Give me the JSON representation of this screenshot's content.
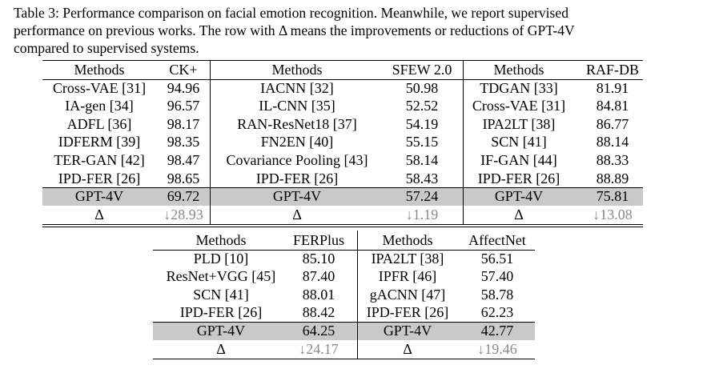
{
  "caption": {
    "lines": [
      "Table 3: Performance comparison on facial emotion recognition. Meanwhile, we report supervised",
      "performance on previous works. The row with Δ means the improvements or reductions of GPT-4V",
      "compared to supervised systems."
    ]
  },
  "top_tables": [
    {
      "headers": [
        "Methods",
        "CK+"
      ],
      "rows": [
        [
          "Cross-VAE [31]",
          "94.96"
        ],
        [
          "IA-gen [34]",
          "96.57"
        ],
        [
          "ADFL [36]",
          "98.17"
        ],
        [
          "IDFERM [39]",
          "98.35"
        ],
        [
          "TER-GAN [42]",
          "98.47"
        ],
        [
          "IPD-FER [26]",
          "98.65"
        ]
      ],
      "gpt": [
        "GPT-4V",
        "69.72"
      ],
      "delta": [
        "Δ",
        "↓28.93"
      ]
    },
    {
      "headers": [
        "Methods",
        "SFEW 2.0"
      ],
      "rows": [
        [
          "IACNN [32]",
          "50.98"
        ],
        [
          "IL-CNN [35]",
          "52.52"
        ],
        [
          "RAN-ResNet18 [37]",
          "54.19"
        ],
        [
          "FN2EN [40]",
          "55.15"
        ],
        [
          "Covariance Pooling [43]",
          "58.14"
        ],
        [
          "IPD-FER [26]",
          "58.43"
        ]
      ],
      "gpt": [
        "GPT-4V",
        "57.24"
      ],
      "delta": [
        "Δ",
        "↓1.19"
      ]
    },
    {
      "headers": [
        "Methods",
        "RAF-DB"
      ],
      "rows": [
        [
          "TDGAN [33]",
          "81.91"
        ],
        [
          "Cross-VAE [31]",
          "84.81"
        ],
        [
          "IPA2LT [38]",
          "86.77"
        ],
        [
          "SCN [41]",
          "88.14"
        ],
        [
          "IF-GAN [44]",
          "88.33"
        ],
        [
          "IPD-FER [26]",
          "88.89"
        ]
      ],
      "gpt": [
        "GPT-4V",
        "75.81"
      ],
      "delta": [
        "Δ",
        "↓13.08"
      ]
    }
  ],
  "bottom_tables": [
    {
      "headers": [
        "Methods",
        "FERPlus"
      ],
      "rows": [
        [
          "PLD [10]",
          "85.10"
        ],
        [
          "ResNet+VGG [45]",
          "87.40"
        ],
        [
          "SCN [41]",
          "88.01"
        ],
        [
          "IPD-FER [26]",
          "88.42"
        ]
      ],
      "gpt": [
        "GPT-4V",
        "64.25"
      ],
      "delta": [
        "Δ",
        "↓24.17"
      ]
    },
    {
      "headers": [
        "Methods",
        "AffectNet"
      ],
      "rows": [
        [
          "IPA2LT [38]",
          "56.51"
        ],
        [
          "IPFR [46]",
          "57.40"
        ],
        [
          "gACNN [47]",
          "58.78"
        ],
        [
          "IPD-FER [26]",
          "62.23"
        ]
      ],
      "gpt": [
        "GPT-4V",
        "42.77"
      ],
      "delta": [
        "Δ",
        "↓19.46"
      ]
    }
  ]
}
